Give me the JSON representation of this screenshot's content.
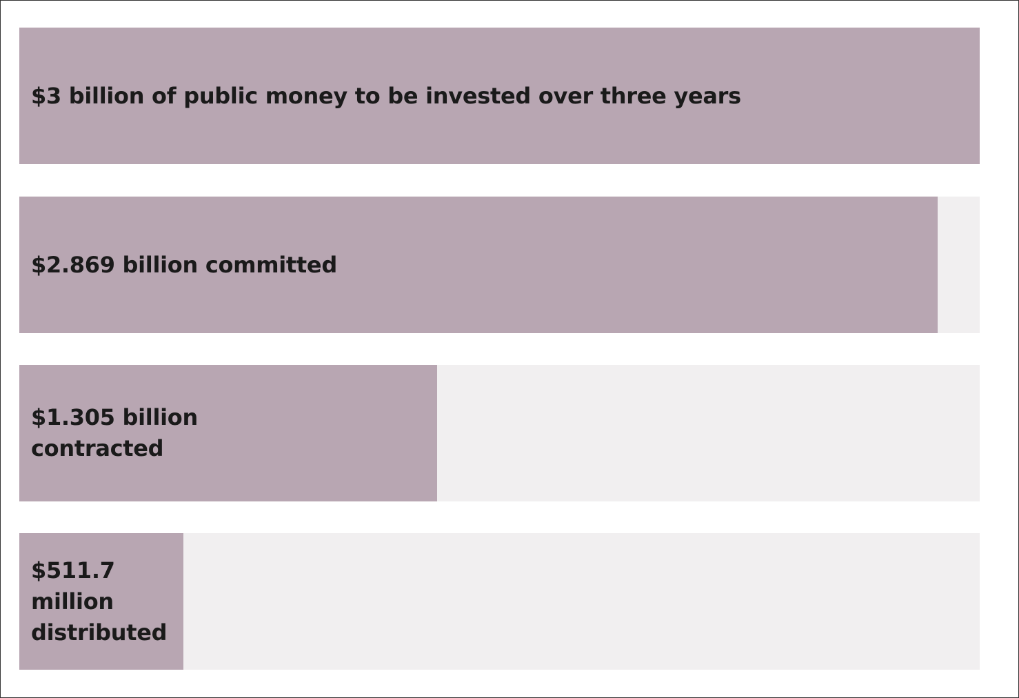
{
  "colors": {
    "fill": "#b8a6b2",
    "track": "#f1eff0",
    "text": "#1a1a1a",
    "border": "#333333"
  },
  "chart_data": {
    "type": "bar",
    "orientation": "horizontal",
    "unit": "$ billion",
    "xlim": [
      0,
      3
    ],
    "grid": false,
    "categories": [
      "$3 billion of public money to be invested over three years",
      "$2.869 billion committed",
      "$1.305 billion\ncontracted",
      "$511.7\nmillion\ndistributed"
    ],
    "values": [
      3,
      2.869,
      1.305,
      0.5117
    ]
  }
}
